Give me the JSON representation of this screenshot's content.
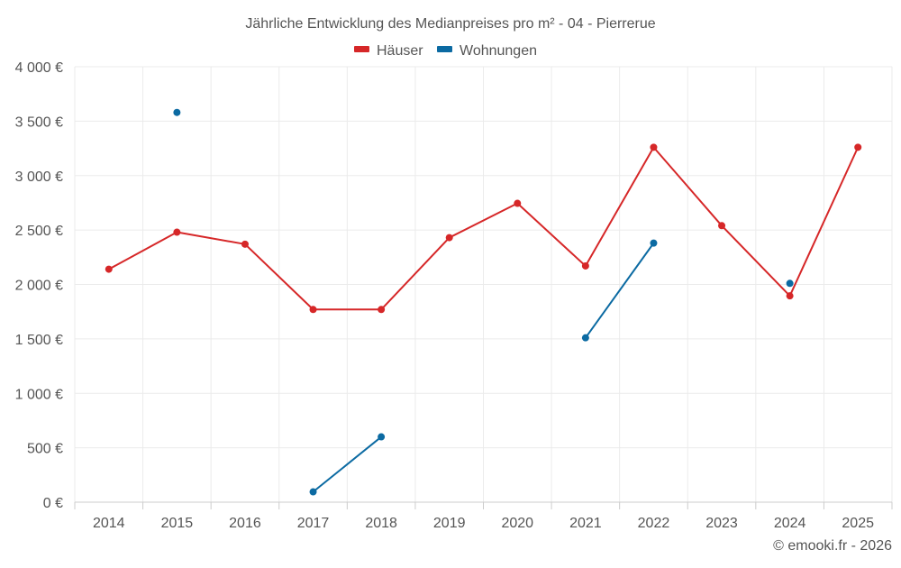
{
  "chart_data": {
    "type": "line",
    "title": "Jährliche Entwicklung des Medianpreises pro m² - 04 - Pierrerue",
    "xlabel": "",
    "ylabel": "",
    "categories": [
      "2014",
      "2015",
      "2016",
      "2017",
      "2018",
      "2019",
      "2020",
      "2021",
      "2022",
      "2023",
      "2024",
      "2025"
    ],
    "ylim": [
      0,
      4000
    ],
    "yticks": [
      0,
      500,
      1000,
      1500,
      2000,
      2500,
      3000,
      3500,
      4000
    ],
    "ytick_labels": [
      "0 €",
      "500 €",
      "1 000 €",
      "1 500 €",
      "2 000 €",
      "2 500 €",
      "3 000 €",
      "3 500 €",
      "4 000 €"
    ],
    "grid": true,
    "legend_position": "top-center",
    "series": [
      {
        "name": "Häuser",
        "color": "#d62728",
        "values": [
          2140,
          2480,
          2370,
          1770,
          1770,
          2430,
          2745,
          2170,
          3260,
          2540,
          1895,
          3260
        ]
      },
      {
        "name": "Wohnungen",
        "color": "#0b6aa2",
        "values": [
          null,
          3580,
          null,
          95,
          600,
          null,
          null,
          1510,
          2380,
          null,
          2010,
          null
        ]
      }
    ],
    "credit": "© emooki.fr - 2026"
  }
}
